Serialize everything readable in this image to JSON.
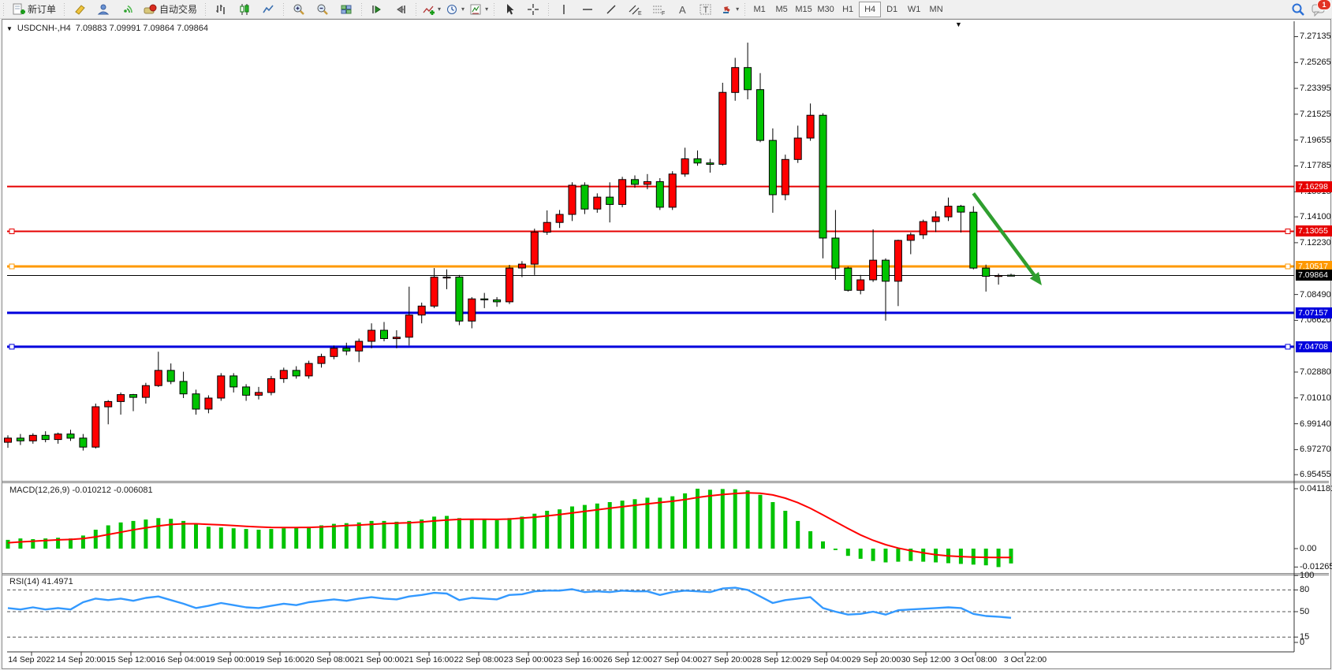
{
  "toolbar": {
    "new_order_label": "新订单",
    "autotrading_label": "自动交易",
    "icons": [
      "new-order",
      "metaeditor",
      "market",
      "signals",
      "autotrading",
      "bar-chart",
      "candlestick-chart",
      "line-chart",
      "zoom-in",
      "zoom-out",
      "tile-windows",
      "auto-scroll",
      "chart-shift",
      "indicators",
      "periods",
      "templates",
      "cursor",
      "crosshair",
      "vertical-line",
      "horizontal-line",
      "trendline",
      "equidistant-channel",
      "fibonacci",
      "text",
      "text-label",
      "arrows",
      "search",
      "notifications"
    ],
    "timeframes": [
      "M1",
      "M5",
      "M15",
      "M30",
      "H1",
      "H4",
      "D1",
      "W1",
      "MN"
    ],
    "active_timeframe": "H4",
    "notification_count": "1"
  },
  "chart": {
    "symbol_period": "USDCNH-,H4",
    "ohlc_text": "7.09883 7.09991 7.09864 7.09864",
    "bull_color": "#ff0000",
    "bear_color": "#00c300",
    "background": "#ffffff"
  },
  "price_axis": {
    "ticks": [
      "7.27135",
      "7.25265",
      "7.23395",
      "7.21525",
      "7.19655",
      "7.17785",
      "7.15915",
      "7.14100",
      "7.12230",
      "7.08490",
      "7.06620",
      "7.02880",
      "7.01010",
      "6.99140",
      "6.97270",
      "6.95455"
    ]
  },
  "hlines": [
    {
      "label": "7.16298",
      "price": 7.16298,
      "color": "#e60000",
      "width": 2,
      "handles": false
    },
    {
      "label": "7.13055",
      "price": 7.13055,
      "color": "#e60000",
      "width": 2,
      "handles": true
    },
    {
      "label": "7.10517",
      "price": 7.10517,
      "color": "#ff9900",
      "width": 3,
      "handles": true
    },
    {
      "label": "7.09864",
      "price": 7.09864,
      "color": "#000000",
      "width": 1,
      "handles": false
    },
    {
      "label": "7.07157",
      "price": 7.07157,
      "color": "#0000dd",
      "width": 3,
      "handles": false
    },
    {
      "label": "7.04708",
      "price": 7.04708,
      "color": "#0000dd",
      "width": 3,
      "handles": true
    }
  ],
  "time_axis": {
    "labels": [
      "14 Sep 2022",
      "14 Sep 20:00",
      "15 Sep 12:00",
      "16 Sep 04:00",
      "19 Sep 00:00",
      "19 Sep 16:00",
      "20 Sep 08:00",
      "21 Sep 00:00",
      "21 Sep 16:00",
      "22 Sep 08:00",
      "23 Sep 00:00",
      "23 Sep 16:00",
      "26 Sep 12:00",
      "27 Sep 04:00",
      "27 Sep 20:00",
      "28 Sep 12:00",
      "29 Sep 04:00",
      "29 Sep 20:00",
      "30 Sep 12:00",
      "3 Oct 08:00",
      "3 Oct 22:00"
    ]
  },
  "macd": {
    "name": "MACD(12,26,9)",
    "value": "-0.010212",
    "signal_value": "-0.006081",
    "ticks": [
      "0.041181",
      "0.00",
      "-0.012659"
    ],
    "histogram_color": "#00c300",
    "signal_color": "#ff0000"
  },
  "rsi": {
    "name": "RSI(14)",
    "value": "41.4971",
    "ticks": [
      "100",
      "80",
      "50",
      "15",
      "0"
    ],
    "levels": [
      80,
      50,
      15
    ],
    "line_color": "#3399ff"
  },
  "annotations": {
    "trend_arrow": {
      "color": "#2f9e2f",
      "from_bar": 77,
      "from_price": 7.158,
      "to_bar": 82,
      "to_price": 7.097
    }
  },
  "chart_data": {
    "type": "candlestick",
    "symbol": "USDCNH-",
    "timeframe": "H4",
    "price_range": [
      6.95455,
      7.27135
    ],
    "candles": [
      [
        6.978,
        6.983,
        6.974,
        6.981
      ],
      [
        6.981,
        6.984,
        6.976,
        6.979
      ],
      [
        6.979,
        6.9845,
        6.977,
        6.983
      ],
      [
        6.983,
        6.986,
        6.978,
        6.98
      ],
      [
        6.98,
        6.985,
        6.977,
        6.984
      ],
      [
        6.984,
        6.987,
        6.979,
        6.981
      ],
      [
        6.981,
        6.984,
        6.972,
        6.9745
      ],
      [
        6.9745,
        7.006,
        6.9735,
        7.0037
      ],
      [
        7.0037,
        7.0085,
        6.991,
        7.0075
      ],
      [
        7.0075,
        7.014,
        6.998,
        7.0125
      ],
      [
        7.0125,
        7.013,
        7.0005,
        7.0105
      ],
      [
        7.0105,
        7.021,
        7.006,
        7.019
      ],
      [
        7.019,
        7.0435,
        7.018,
        7.03
      ],
      [
        7.03,
        7.035,
        7.02,
        7.022
      ],
      [
        7.022,
        7.029,
        7.01,
        7.013
      ],
      [
        7.013,
        7.016,
        6.998,
        7.002
      ],
      [
        7.002,
        7.012,
        6.999,
        7.01
      ],
      [
        7.01,
        7.028,
        7.008,
        7.026
      ],
      [
        7.026,
        7.028,
        7.014,
        7.018
      ],
      [
        7.018,
        7.02,
        7.008,
        7.012
      ],
      [
        7.012,
        7.018,
        7.009,
        7.014
      ],
      [
        7.014,
        7.026,
        7.012,
        7.024
      ],
      [
        7.024,
        7.032,
        7.021,
        7.03
      ],
      [
        7.03,
        7.033,
        7.024,
        7.026
      ],
      [
        7.026,
        7.037,
        7.024,
        7.035
      ],
      [
        7.035,
        7.042,
        7.032,
        7.04
      ],
      [
        7.04,
        7.048,
        7.038,
        7.046
      ],
      [
        7.046,
        7.05,
        7.041,
        7.044
      ],
      [
        7.044,
        7.053,
        7.036,
        7.051
      ],
      [
        7.051,
        7.064,
        7.046,
        7.059
      ],
      [
        7.059,
        7.065,
        7.051,
        7.053
      ],
      [
        7.053,
        7.059,
        7.046,
        7.054
      ],
      [
        7.054,
        7.0905,
        7.048,
        7.07
      ],
      [
        7.07,
        7.079,
        7.064,
        7.0765
      ],
      [
        7.0765,
        7.104,
        7.075,
        7.0974
      ],
      [
        7.0974,
        7.103,
        7.0887,
        7.0975
      ],
      [
        7.0975,
        7.099,
        7.0627,
        7.0657
      ],
      [
        7.0657,
        7.083,
        7.0604,
        7.0817
      ],
      [
        7.0817,
        7.086,
        7.075,
        7.081
      ],
      [
        7.081,
        7.083,
        7.076,
        7.0796
      ],
      [
        7.0796,
        7.1063,
        7.078,
        7.104
      ],
      [
        7.104,
        7.109,
        7.0974,
        7.1068
      ],
      [
        7.1068,
        7.1325,
        7.099,
        7.13
      ],
      [
        7.13,
        7.1457,
        7.128,
        7.137
      ],
      [
        7.137,
        7.146,
        7.133,
        7.1428
      ],
      [
        7.1428,
        7.166,
        7.138,
        7.1639
      ],
      [
        7.1639,
        7.166,
        7.143,
        7.1467
      ],
      [
        7.1467,
        7.158,
        7.144,
        7.1553
      ],
      [
        7.1553,
        7.166,
        7.137,
        7.15
      ],
      [
        7.15,
        7.17,
        7.148,
        7.168
      ],
      [
        7.168,
        7.171,
        7.162,
        7.1645
      ],
      [
        7.1645,
        7.172,
        7.161,
        7.1665
      ],
      [
        7.1665,
        7.169,
        7.146,
        7.148
      ],
      [
        7.148,
        7.174,
        7.146,
        7.172
      ],
      [
        7.172,
        7.191,
        7.17,
        7.183
      ],
      [
        7.183,
        7.189,
        7.178,
        7.18
      ],
      [
        7.18,
        7.183,
        7.173,
        7.179
      ],
      [
        7.179,
        7.238,
        7.178,
        7.231
      ],
      [
        7.231,
        7.256,
        7.225,
        7.249
      ],
      [
        7.249,
        7.267,
        7.226,
        7.233
      ],
      [
        7.233,
        7.245,
        7.195,
        7.1963
      ],
      [
        7.1963,
        7.205,
        7.144,
        7.157
      ],
      [
        7.157,
        7.186,
        7.153,
        7.1825
      ],
      [
        7.1825,
        7.207,
        7.18,
        7.198
      ],
      [
        7.198,
        7.223,
        7.196,
        7.2145
      ],
      [
        7.2145,
        7.216,
        7.111,
        7.1257
      ],
      [
        7.1257,
        7.146,
        7.0955,
        7.104
      ],
      [
        7.104,
        7.105,
        7.087,
        7.0879
      ],
      [
        7.0879,
        7.099,
        7.085,
        7.0955
      ],
      [
        7.0955,
        7.132,
        7.094,
        7.1097
      ],
      [
        7.1097,
        7.111,
        7.066,
        7.0945
      ],
      [
        7.0945,
        7.1245,
        7.0765,
        7.124
      ],
      [
        7.124,
        7.1297,
        7.114,
        7.128
      ],
      [
        7.128,
        7.139,
        7.125,
        7.1376
      ],
      [
        7.1376,
        7.145,
        7.13,
        7.141
      ],
      [
        7.141,
        7.155,
        7.138,
        7.1487
      ],
      [
        7.1487,
        7.1497,
        7.1297,
        7.1444
      ],
      [
        7.1444,
        7.1487,
        7.103,
        7.104
      ],
      [
        7.104,
        7.1065,
        7.087,
        7.0981
      ],
      [
        7.0981,
        7.1,
        7.092,
        7.0986
      ],
      [
        7.09883,
        7.09991,
        7.09864,
        7.09864
      ]
    ],
    "macd_histogram": [
      0.006,
      0.007,
      0.0065,
      0.007,
      0.0075,
      0.007,
      0.009,
      0.013,
      0.016,
      0.018,
      0.019,
      0.02,
      0.021,
      0.0205,
      0.019,
      0.017,
      0.015,
      0.0145,
      0.014,
      0.0135,
      0.013,
      0.0135,
      0.014,
      0.0145,
      0.015,
      0.016,
      0.017,
      0.0175,
      0.018,
      0.019,
      0.019,
      0.0185,
      0.019,
      0.02,
      0.022,
      0.0225,
      0.021,
      0.0205,
      0.02,
      0.0195,
      0.021,
      0.022,
      0.024,
      0.026,
      0.027,
      0.029,
      0.03,
      0.031,
      0.032,
      0.033,
      0.034,
      0.035,
      0.035,
      0.036,
      0.038,
      0.0412,
      0.0405,
      0.041,
      0.0408,
      0.04,
      0.037,
      0.032,
      0.026,
      0.019,
      0.012,
      0.005,
      -0.001,
      -0.005,
      -0.007,
      -0.0085,
      -0.0095,
      -0.009,
      -0.0085,
      -0.009,
      -0.0095,
      -0.01,
      -0.0105,
      -0.011,
      -0.0115,
      -0.0127,
      -0.0102
    ],
    "macd_signal": [
      0.004,
      0.0046,
      0.0051,
      0.0056,
      0.006,
      0.0063,
      0.0069,
      0.0081,
      0.0097,
      0.0113,
      0.0129,
      0.0143,
      0.0156,
      0.0166,
      0.0171,
      0.0171,
      0.0167,
      0.0163,
      0.0158,
      0.0153,
      0.0149,
      0.0146,
      0.0145,
      0.0145,
      0.0146,
      0.0149,
      0.0153,
      0.0158,
      0.0162,
      0.0167,
      0.0172,
      0.0175,
      0.0178,
      0.0183,
      0.019,
      0.0197,
      0.0201,
      0.0202,
      0.0202,
      0.0201,
      0.0203,
      0.021,
      0.0216,
      0.0225,
      0.0234,
      0.0245,
      0.0256,
      0.0267,
      0.0278,
      0.0288,
      0.0298,
      0.0308,
      0.0317,
      0.0326,
      0.0337,
      0.0352,
      0.0363,
      0.0372,
      0.0379,
      0.0383,
      0.0381,
      0.0369,
      0.0347,
      0.0316,
      0.0277,
      0.0232,
      0.0185,
      0.0138,
      0.0094,
      0.0057,
      0.0027,
      0.0004,
      -0.0014,
      -0.0029,
      -0.0042,
      -0.005,
      -0.0055,
      -0.0058,
      -0.006,
      -0.0061,
      -0.00608
    ],
    "rsi": [
      55,
      53,
      56,
      53,
      55,
      53,
      63,
      68,
      66,
      68,
      65,
      69,
      71,
      66,
      61,
      55,
      58,
      62,
      59,
      56,
      55,
      58,
      61,
      59,
      63,
      65,
      67,
      65,
      68,
      70,
      68,
      67,
      71,
      73,
      76,
      75,
      66,
      69,
      68,
      67,
      73,
      74,
      78,
      79,
      79,
      81,
      77,
      78,
      77,
      79,
      78,
      78,
      73,
      77,
      79,
      78,
      77,
      82,
      83,
      80,
      71,
      62,
      66,
      68,
      70,
      55,
      50,
      46,
      47,
      50,
      46,
      52,
      53,
      54,
      55,
      56,
      55,
      47,
      44,
      43,
      41.5
    ]
  }
}
